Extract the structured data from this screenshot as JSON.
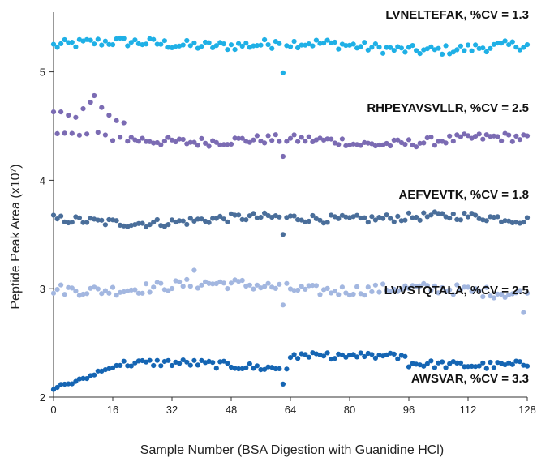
{
  "chart_data": {
    "type": "scatter",
    "xlabel": "Sample Number (BSA Digestion with Guanidine HCl)",
    "ylabel": "Peptide Peak Area (x10⁷)",
    "xlim": [
      0,
      128
    ],
    "ylim": [
      2,
      5.55
    ],
    "xticks": [
      0,
      16,
      32,
      48,
      64,
      80,
      96,
      112,
      128
    ],
    "yticks": [
      2,
      3,
      4,
      5
    ],
    "grid": false,
    "series": [
      {
        "name": "LVNELTEFAK, %CV = 1.3",
        "color": "#1fb0e6",
        "baseline": 5.24,
        "amplitude": 0.065,
        "outliers": [
          [
            62,
            4.99
          ],
          [
            61,
            5.26
          ],
          [
            60,
            5.28
          ]
        ]
      },
      {
        "name": "RHPEYAVSVLLR, %CV = 2.5",
        "color": "#7b6bb3",
        "baseline": 4.38,
        "amplitude": 0.06,
        "start": [
          [
            0,
            4.63
          ],
          [
            2,
            4.63
          ],
          [
            4,
            4.6
          ],
          [
            6,
            4.58
          ],
          [
            8,
            4.66
          ],
          [
            10,
            4.72
          ],
          [
            11,
            4.78
          ],
          [
            13,
            4.67
          ],
          [
            15,
            4.6
          ],
          [
            17,
            4.55
          ],
          [
            19,
            4.53
          ]
        ],
        "outliers": [
          [
            62,
            4.22
          ]
        ]
      },
      {
        "name": "AEFVEVTK, %CV = 1.8",
        "color": "#4a6e9a",
        "baseline": 3.64,
        "amplitude": 0.055,
        "outliers": [
          [
            62,
            3.5
          ]
        ]
      },
      {
        "name": "LVVSTQTALA, %CV = 2.5",
        "color": "#a3b7e0",
        "baseline": 3.0,
        "amplitude": 0.07,
        "outliers": [
          [
            62,
            2.85
          ],
          [
            38,
            3.17
          ],
          [
            127,
            2.78
          ]
        ]
      },
      {
        "name": "AWSVAR, %CV = 3.3",
        "color": "#1565b3",
        "baseline": 2.3,
        "amplitude": 0.05,
        "outliers": [
          [
            62,
            2.12
          ],
          [
            0,
            2.07
          ],
          [
            1,
            2.09
          ]
        ]
      }
    ]
  }
}
